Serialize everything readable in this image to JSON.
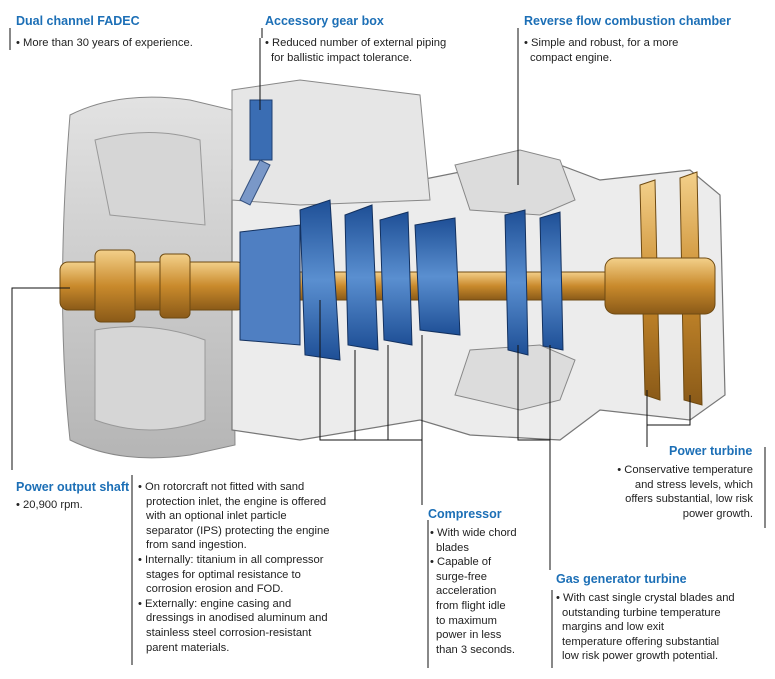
{
  "callouts": {
    "fadec": {
      "title": "Dual channel FADEC",
      "lines": [
        "• More than 30 years of experience."
      ]
    },
    "gearbox": {
      "title": "Accessory gear box",
      "lines": [
        "• Reduced number of external piping",
        "for ballistic impact tolerance."
      ]
    },
    "combustion": {
      "title": "Reverse flow combustion chamber",
      "lines": [
        "• Simple and robust, for a more",
        "compact engine."
      ]
    },
    "power_turbine": {
      "title": "Power turbine",
      "lines": [
        "• Conservative temperature",
        "and stress levels, which",
        "offers substantial, low risk",
        "power growth."
      ]
    },
    "shaft": {
      "title": "Power output shaft",
      "lines": [
        "• 20,900 rpm."
      ]
    },
    "general": {
      "lines": [
        "• On rotorcraft not fitted with sand",
        "protection inlet, the engine is offered",
        "with an optional inlet particle",
        "separator (IPS) protecting the engine",
        "from sand ingestion.",
        "• Internally: titanium in all compressor",
        "stages for optimal resistance to",
        "corrosion erosion and FOD.",
        "• Externally: engine casing and",
        "dressings in anodised aluminum and",
        "stainless steel corrosion-resistant",
        "parent materials."
      ]
    },
    "compressor": {
      "title": "Compressor",
      "lines": [
        "• With wide chord",
        "blades",
        "• Capable of",
        "surge-free",
        "acceleration",
        "from flight idle",
        "to maximum",
        "power in less",
        "than 3 seconds."
      ]
    },
    "gas_generator": {
      "title": "Gas generator turbine",
      "lines": [
        "• With cast single crystal blades and",
        "outstanding turbine temperature",
        "margins and low exit",
        "temperature offering substantial",
        "low risk power growth potential."
      ]
    }
  },
  "colors": {
    "title": "#1c6fb6",
    "rotor_blue": "#2a5fa8",
    "shaft_gold": "#d49a3a",
    "casing_gray": "#c8c8c8"
  }
}
